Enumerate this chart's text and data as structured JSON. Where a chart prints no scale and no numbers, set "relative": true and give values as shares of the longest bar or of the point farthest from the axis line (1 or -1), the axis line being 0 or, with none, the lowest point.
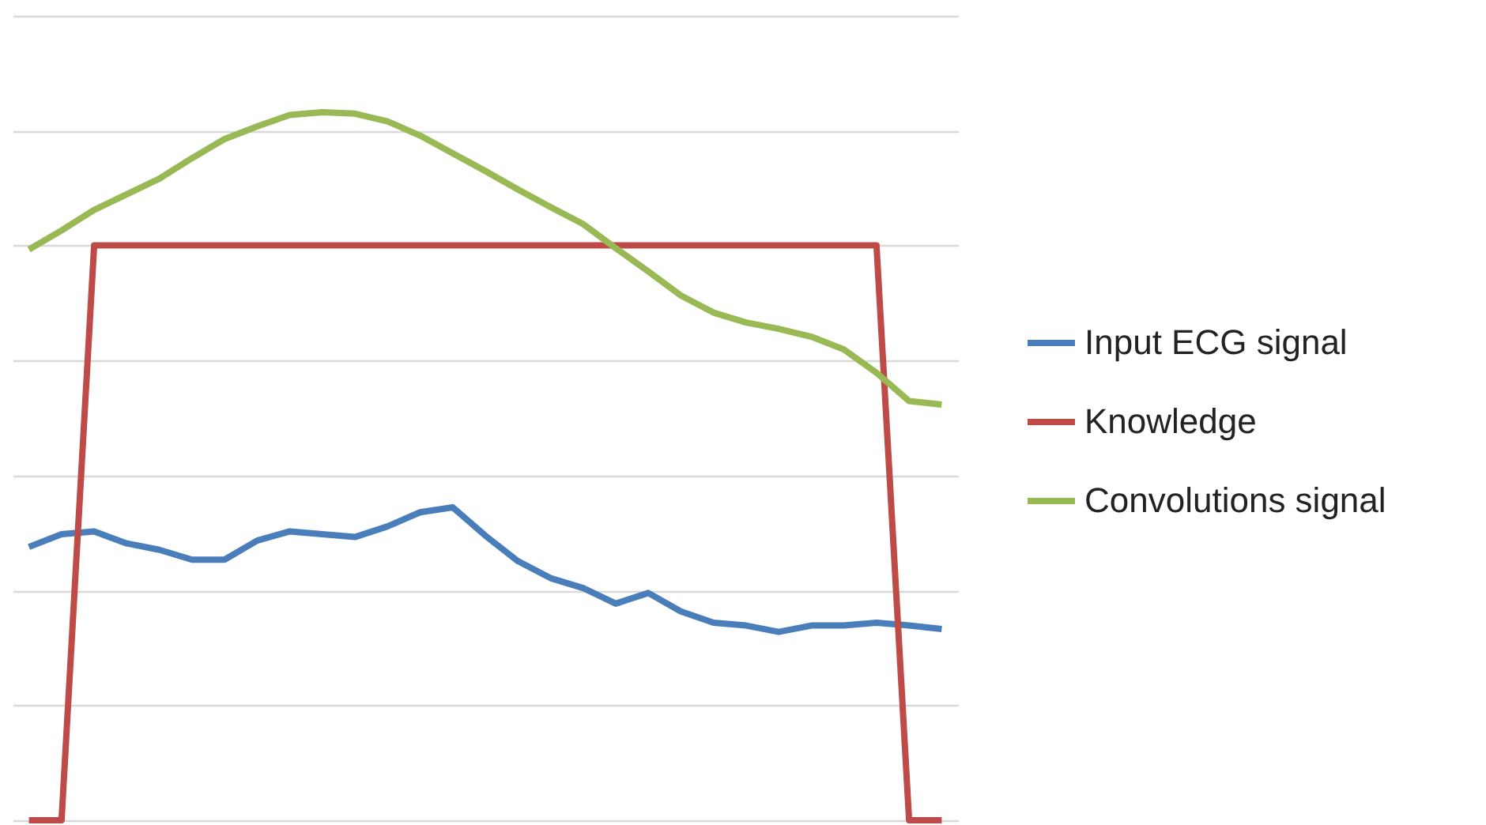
{
  "chart_data": {
    "type": "line",
    "relative": true,
    "grid": "y",
    "legend": "right",
    "categories": [
      null,
      null,
      null,
      null,
      null,
      null,
      null,
      null,
      null,
      null,
      null,
      null,
      null,
      null,
      null,
      null,
      null,
      null,
      null,
      null,
      null,
      null,
      null,
      null,
      null,
      null,
      null,
      null,
      null
    ],
    "series": [
      {
        "name": "Input ECG signal",
        "color": "#4a7ebb",
        "values": [
          0.386,
          0.404,
          0.408,
          0.391,
          0.382,
          0.368,
          0.368,
          0.395,
          0.408,
          0.404,
          0.4,
          0.415,
          0.435,
          0.442,
          0.402,
          0.366,
          0.342,
          0.328,
          0.306,
          0.321,
          0.295,
          0.279,
          0.275,
          0.266,
          0.275,
          0.275,
          0.279,
          0.275,
          0.27
        ]
      },
      {
        "name": "Knowledge",
        "color": "#be4b48",
        "values": [
          0,
          0,
          0.812,
          0.812,
          0.812,
          0.812,
          0.812,
          0.812,
          0.812,
          0.812,
          0.812,
          0.812,
          0.812,
          0.812,
          0.812,
          0.812,
          0.812,
          0.812,
          0.812,
          0.812,
          0.812,
          0.812,
          0.812,
          0.812,
          0.812,
          0.812,
          0.812,
          0,
          0
        ]
      },
      {
        "name": "Convolutions signal",
        "color": "#98b954",
        "values": [
          0.806,
          0.833,
          0.862,
          0.884,
          0.906,
          0.935,
          0.962,
          0.98,
          0.996,
          1,
          0.998,
          0.987,
          0.967,
          0.942,
          0.917,
          0.891,
          0.866,
          0.842,
          0.808,
          0.775,
          0.741,
          0.717,
          0.703,
          0.694,
          0.683,
          0.665,
          0.632,
          0.592,
          0.587
        ]
      }
    ]
  }
}
